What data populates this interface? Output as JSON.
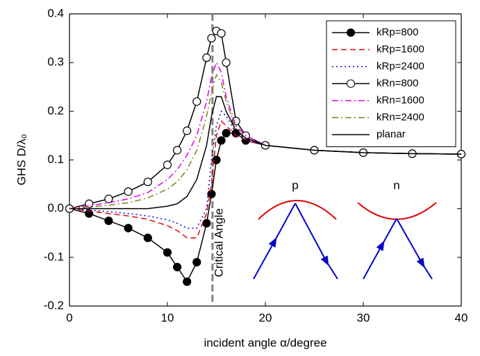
{
  "chart_data": {
    "type": "line",
    "xlabel": "incident angle α/degree",
    "ylabel": "GHS D/λ₀",
    "x": [
      0,
      2,
      4,
      6,
      8,
      10,
      11,
      12,
      13,
      14,
      14.5,
      15,
      15.5,
      16,
      17,
      18,
      20,
      25,
      30,
      35,
      40
    ],
    "series": [
      {
        "name": "kRp=800",
        "color": "#000000",
        "dash": "solid",
        "marker": "filled",
        "values": [
          0,
          -0.01,
          -0.025,
          -0.04,
          -0.06,
          -0.09,
          -0.12,
          -0.15,
          -0.11,
          -0.03,
          0.03,
          0.1,
          0.14,
          0.155,
          0.155,
          0.14,
          0.13,
          0.12,
          0.115,
          0.113,
          0.112
        ]
      },
      {
        "name": "kRp=1600",
        "color": "#e00000",
        "dash": "dashed",
        "marker": null,
        "values": [
          0,
          -0.005,
          -0.01,
          -0.015,
          -0.022,
          -0.035,
          -0.045,
          -0.06,
          -0.06,
          -0.01,
          0.05,
          0.15,
          0.18,
          0.17,
          0.15,
          0.14,
          0.13,
          0.12,
          0.115,
          0.113,
          0.112
        ]
      },
      {
        "name": "kRp=2400",
        "color": "#0000cc",
        "dash": "dotted",
        "marker": null,
        "values": [
          0,
          -0.003,
          -0.006,
          -0.01,
          -0.015,
          -0.023,
          -0.03,
          -0.04,
          -0.04,
          0,
          0.1,
          0.17,
          0.2,
          0.19,
          0.155,
          0.14,
          0.13,
          0.12,
          0.115,
          0.113,
          0.112
        ]
      },
      {
        "name": "kRn=800",
        "color": "#000000",
        "dash": "solid",
        "marker": "open",
        "values": [
          0,
          0.01,
          0.02,
          0.035,
          0.055,
          0.09,
          0.12,
          0.16,
          0.22,
          0.31,
          0.35,
          0.365,
          0.36,
          0.3,
          0.18,
          0.15,
          0.13,
          0.12,
          0.115,
          0.113,
          0.112
        ]
      },
      {
        "name": "kRn=1600",
        "color": "#e000e0",
        "dash": "dashdot",
        "marker": null,
        "values": [
          0,
          0.006,
          0.012,
          0.02,
          0.033,
          0.06,
          0.08,
          0.11,
          0.15,
          0.22,
          0.27,
          0.3,
          0.28,
          0.23,
          0.17,
          0.15,
          0.13,
          0.12,
          0.115,
          0.113,
          0.112
        ]
      },
      {
        "name": "kRn=2400",
        "color": "#808020",
        "dash": "dashdot",
        "marker": null,
        "values": [
          0,
          0.003,
          0.007,
          0.012,
          0.022,
          0.04,
          0.055,
          0.08,
          0.12,
          0.19,
          0.24,
          0.275,
          0.26,
          0.22,
          0.165,
          0.145,
          0.13,
          0.12,
          0.115,
          0.113,
          0.112
        ]
      },
      {
        "name": "planar",
        "color": "#000000",
        "dash": "solid",
        "marker": null,
        "values": [
          0,
          0,
          0,
          0,
          0,
          0.005,
          0.01,
          0.025,
          0.06,
          0.13,
          0.19,
          0.23,
          0.23,
          0.2,
          0.16,
          0.145,
          0.13,
          0.12,
          0.115,
          0.113,
          0.112
        ]
      }
    ],
    "xlim": [
      0,
      40
    ],
    "xticks": [
      0,
      10,
      20,
      30,
      40
    ],
    "ylim": [
      -0.2,
      0.4
    ],
    "yticks": [
      -0.2,
      -0.1,
      {
        "value": 0,
        "label": "0.0"
      },
      0.1,
      0.2,
      0.3,
      0.4
    ],
    "vline": {
      "x": 14.6,
      "label": "Critical Angle"
    },
    "inset_labels": [
      "p",
      "n"
    ],
    "legend": "upper right"
  }
}
